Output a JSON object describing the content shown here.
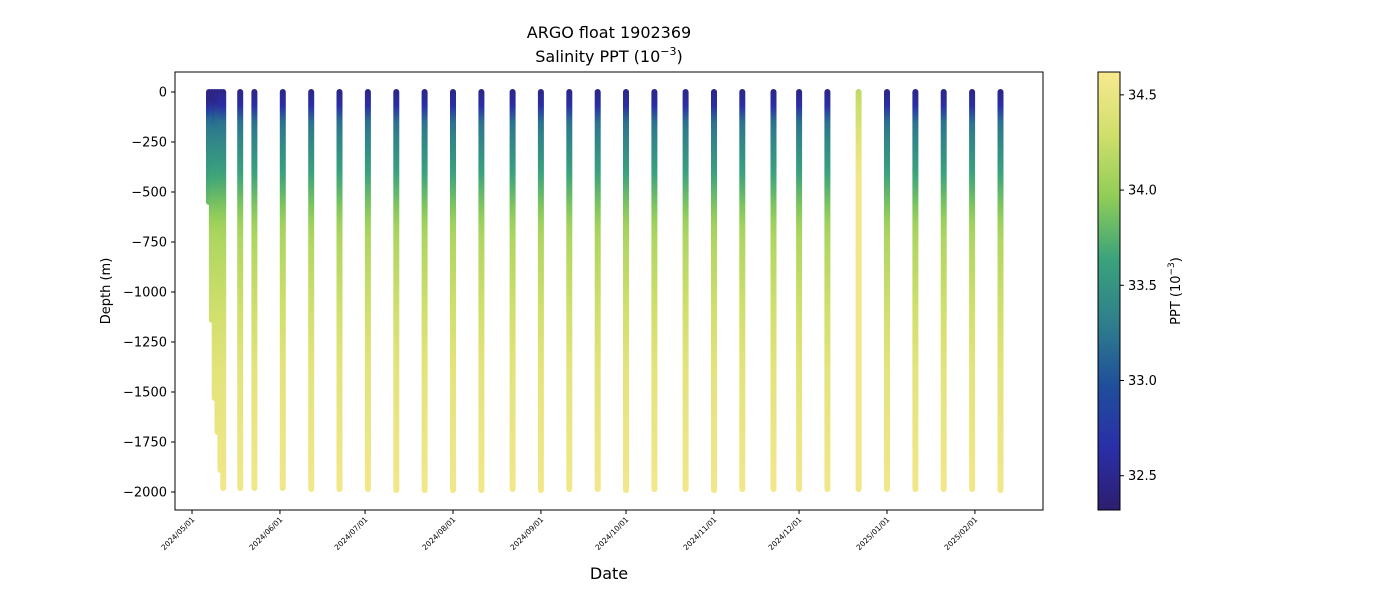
{
  "chart_data": {
    "type": "scatter",
    "title_line1": "ARGO float 1902369",
    "title_line2": "Salinity PPT (10",
    "title_line2_exp": "−3",
    "title_line2_end": ")",
    "xlabel": "Date",
    "ylabel": "Depth (m)",
    "colorbar_label": "PPT (10",
    "colorbar_label_exp": "−3",
    "colorbar_label_end": ")",
    "colormap": [
      "#2d1e6e",
      "#2a2fa8",
      "#1f4f9a",
      "#2f7f8c",
      "#3aa27c",
      "#8fcd57",
      "#d0df6c",
      "#f8e98f"
    ],
    "ylim": [
      -2090,
      100
    ],
    "xlim": [
      "2024-04-25",
      "2025-02-25"
    ],
    "clim": [
      32.32,
      34.62
    ],
    "y_ticks": [
      0,
      -250,
      -500,
      -750,
      -1000,
      -1250,
      -1500,
      -1750,
      -2000
    ],
    "y_tick_labels": [
      "0",
      "−250",
      "−500",
      "−750",
      "−1000",
      "−1250",
      "−1500",
      "−1750",
      "−2000"
    ],
    "x_ticks": [
      "2024-05-01",
      "2024-06-01",
      "2024-07-01",
      "2024-08-01",
      "2024-09-01",
      "2024-10-01",
      "2024-11-01",
      "2024-12-01",
      "2025-01-01",
      "2025-02-01"
    ],
    "x_tick_labels": [
      "2024/05/01",
      "2024/06/01",
      "2024/07/01",
      "2024/08/01",
      "2024/09/01",
      "2024/10/01",
      "2024/11/01",
      "2024/12/01",
      "2025/01/01",
      "2025/02/01"
    ],
    "colorbar_ticks": [
      32.5,
      33.0,
      33.5,
      34.0,
      34.5
    ],
    "colorbar_tick_labels": [
      "32.5",
      "33.0",
      "33.5",
      "34.0",
      "34.5"
    ],
    "profile_dates": [
      "2024-05-07",
      "2024-05-08",
      "2024-05-09",
      "2024-05-10",
      "2024-05-11",
      "2024-05-12",
      "2024-05-18",
      "2024-05-23",
      "2024-06-02",
      "2024-06-12",
      "2024-06-22",
      "2024-07-02",
      "2024-07-12",
      "2024-07-22",
      "2024-08-01",
      "2024-08-11",
      "2024-08-22",
      "2024-09-01",
      "2024-09-11",
      "2024-09-21",
      "2024-10-01",
      "2024-10-11",
      "2024-10-22",
      "2024-11-01",
      "2024-11-11",
      "2024-11-22",
      "2024-12-01",
      "2024-12-11",
      "2024-12-22",
      "2025-01-01",
      "2025-01-11",
      "2025-01-21",
      "2025-01-31",
      "2025-02-10"
    ],
    "profile_max_depth": [
      -550,
      -1140,
      -1530,
      -1700,
      -1890,
      -1980,
      -1980,
      -1980,
      -1980,
      -1985,
      -1985,
      -1985,
      -1990,
      -1990,
      -1990,
      -1990,
      -1985,
      -1990,
      -1985,
      -1985,
      -1990,
      -1985,
      -1985,
      -1990,
      -1985,
      -1985,
      -1985,
      -1985,
      -1985,
      -1985,
      -1985,
      -1985,
      -1985,
      -1990
    ]
  }
}
